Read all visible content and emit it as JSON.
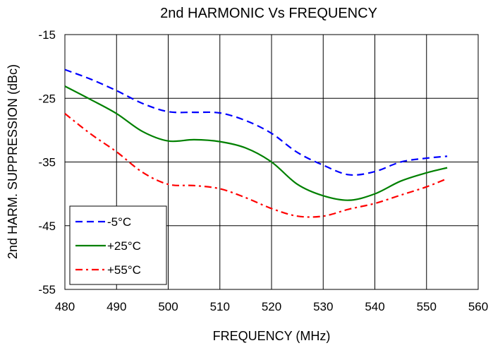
{
  "chart_data": {
    "type": "line",
    "title": "2nd HARMONIC Vs FREQUENCY",
    "xlabel": "FREQUENCY (MHz)",
    "ylabel": "2nd HARM. SUPPRESSION (dBc)",
    "xlim": [
      480,
      560
    ],
    "ylim": [
      -55,
      -15
    ],
    "xticks": [
      480,
      490,
      500,
      510,
      520,
      530,
      540,
      550,
      560
    ],
    "yticks": [
      -15,
      -25,
      -35,
      -45,
      -55
    ],
    "grid": true,
    "legend_position": "bottom-left",
    "series": [
      {
        "name": "-5°C",
        "color": "#0000ff",
        "dash": "dashed",
        "x": [
          480,
          485,
          490,
          495,
          500,
          505,
          510,
          515,
          520,
          525,
          530,
          535,
          540,
          545,
          550,
          554
        ],
        "y": [
          -20.5,
          -22.0,
          -23.8,
          -25.8,
          -27.1,
          -27.2,
          -27.3,
          -28.5,
          -30.5,
          -33.5,
          -35.5,
          -37.0,
          -36.5,
          -35.0,
          -34.4,
          -34.1
        ]
      },
      {
        "name": "+25°C",
        "color": "#008000",
        "dash": "solid",
        "x": [
          480,
          485,
          490,
          495,
          500,
          505,
          510,
          515,
          520,
          525,
          530,
          535,
          540,
          545,
          550,
          554
        ],
        "y": [
          -23.1,
          -25.2,
          -27.4,
          -30.2,
          -31.7,
          -31.5,
          -31.8,
          -32.8,
          -35.0,
          -38.5,
          -40.3,
          -41.0,
          -40.0,
          -38.0,
          -36.7,
          -35.9
        ]
      },
      {
        "name": "+55°C",
        "color": "#ff0000",
        "dash": "dashdot",
        "x": [
          480,
          485,
          490,
          495,
          500,
          505,
          510,
          515,
          520,
          525,
          530,
          535,
          540,
          545,
          550,
          554
        ],
        "y": [
          -27.4,
          -30.6,
          -33.4,
          -36.6,
          -38.5,
          -38.7,
          -39.2,
          -40.6,
          -42.3,
          -43.5,
          -43.5,
          -42.4,
          -41.5,
          -40.2,
          -38.9,
          -37.6
        ]
      }
    ]
  }
}
